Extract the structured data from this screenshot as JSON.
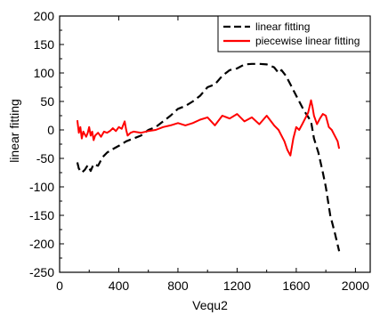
{
  "chart_data": {
    "type": "line",
    "xlabel": "Vequ2",
    "ylabel": "linear fitting",
    "xlim": [
      0,
      2100
    ],
    "ylim": [
      -250,
      200
    ],
    "xticks": [
      0,
      400,
      800,
      1200,
      1600,
      2000
    ],
    "yticks": [
      -250,
      -200,
      -150,
      -100,
      -50,
      0,
      50,
      100,
      150,
      200
    ],
    "grid": false,
    "legend_position": "top-right",
    "series": [
      {
        "name": "linear fitting",
        "color": "#000000",
        "style": "dashed",
        "x": [
          120,
          130,
          150,
          170,
          190,
          210,
          230,
          260,
          290,
          320,
          350,
          400,
          450,
          500,
          550,
          600,
          650,
          700,
          750,
          800,
          850,
          900,
          950,
          1000,
          1050,
          1100,
          1150,
          1200,
          1250,
          1300,
          1350,
          1400,
          1450,
          1480,
          1500,
          1530,
          1560,
          1600,
          1650,
          1700,
          1720,
          1750,
          1780,
          1800,
          1830,
          1860,
          1890
        ],
        "values": [
          -57,
          -68,
          -75,
          -70,
          -62,
          -72,
          -60,
          -63,
          -48,
          -40,
          -35,
          -28,
          -20,
          -15,
          -10,
          0,
          5,
          15,
          25,
          37,
          42,
          50,
          60,
          75,
          80,
          95,
          105,
          108,
          115,
          116,
          116,
          115,
          110,
          100,
          105,
          95,
          80,
          60,
          35,
          15,
          -15,
          -40,
          -75,
          -100,
          -150,
          -180,
          -213
        ]
      },
      {
        "name": "piecewise linear fitting",
        "color": "#ff0000",
        "style": "solid",
        "x": [
          120,
          130,
          140,
          150,
          160,
          170,
          180,
          190,
          200,
          210,
          220,
          230,
          240,
          260,
          280,
          300,
          320,
          340,
          360,
          380,
          400,
          420,
          440,
          450,
          460,
          480,
          500,
          550,
          600,
          650,
          700,
          750,
          800,
          850,
          900,
          950,
          1000,
          1050,
          1100,
          1150,
          1200,
          1250,
          1300,
          1350,
          1400,
          1450,
          1480,
          1500,
          1520,
          1540,
          1560,
          1580,
          1600,
          1620,
          1640,
          1660,
          1680,
          1700,
          1710,
          1720,
          1740,
          1760,
          1780,
          1800,
          1820,
          1840,
          1860,
          1880,
          1890
        ],
        "values": [
          17,
          -5,
          5,
          -15,
          -3,
          -8,
          -12,
          -5,
          5,
          -10,
          -3,
          -18,
          -10,
          -5,
          -12,
          -3,
          -5,
          -2,
          3,
          -2,
          5,
          2,
          15,
          0,
          -10,
          -5,
          -3,
          -5,
          -2,
          0,
          5,
          8,
          12,
          8,
          12,
          18,
          22,
          8,
          25,
          20,
          28,
          15,
          22,
          10,
          25,
          8,
          0,
          -10,
          -20,
          -35,
          -45,
          -15,
          5,
          0,
          10,
          20,
          30,
          52,
          40,
          25,
          10,
          20,
          28,
          25,
          5,
          0,
          -10,
          -20,
          -33
        ]
      }
    ]
  }
}
